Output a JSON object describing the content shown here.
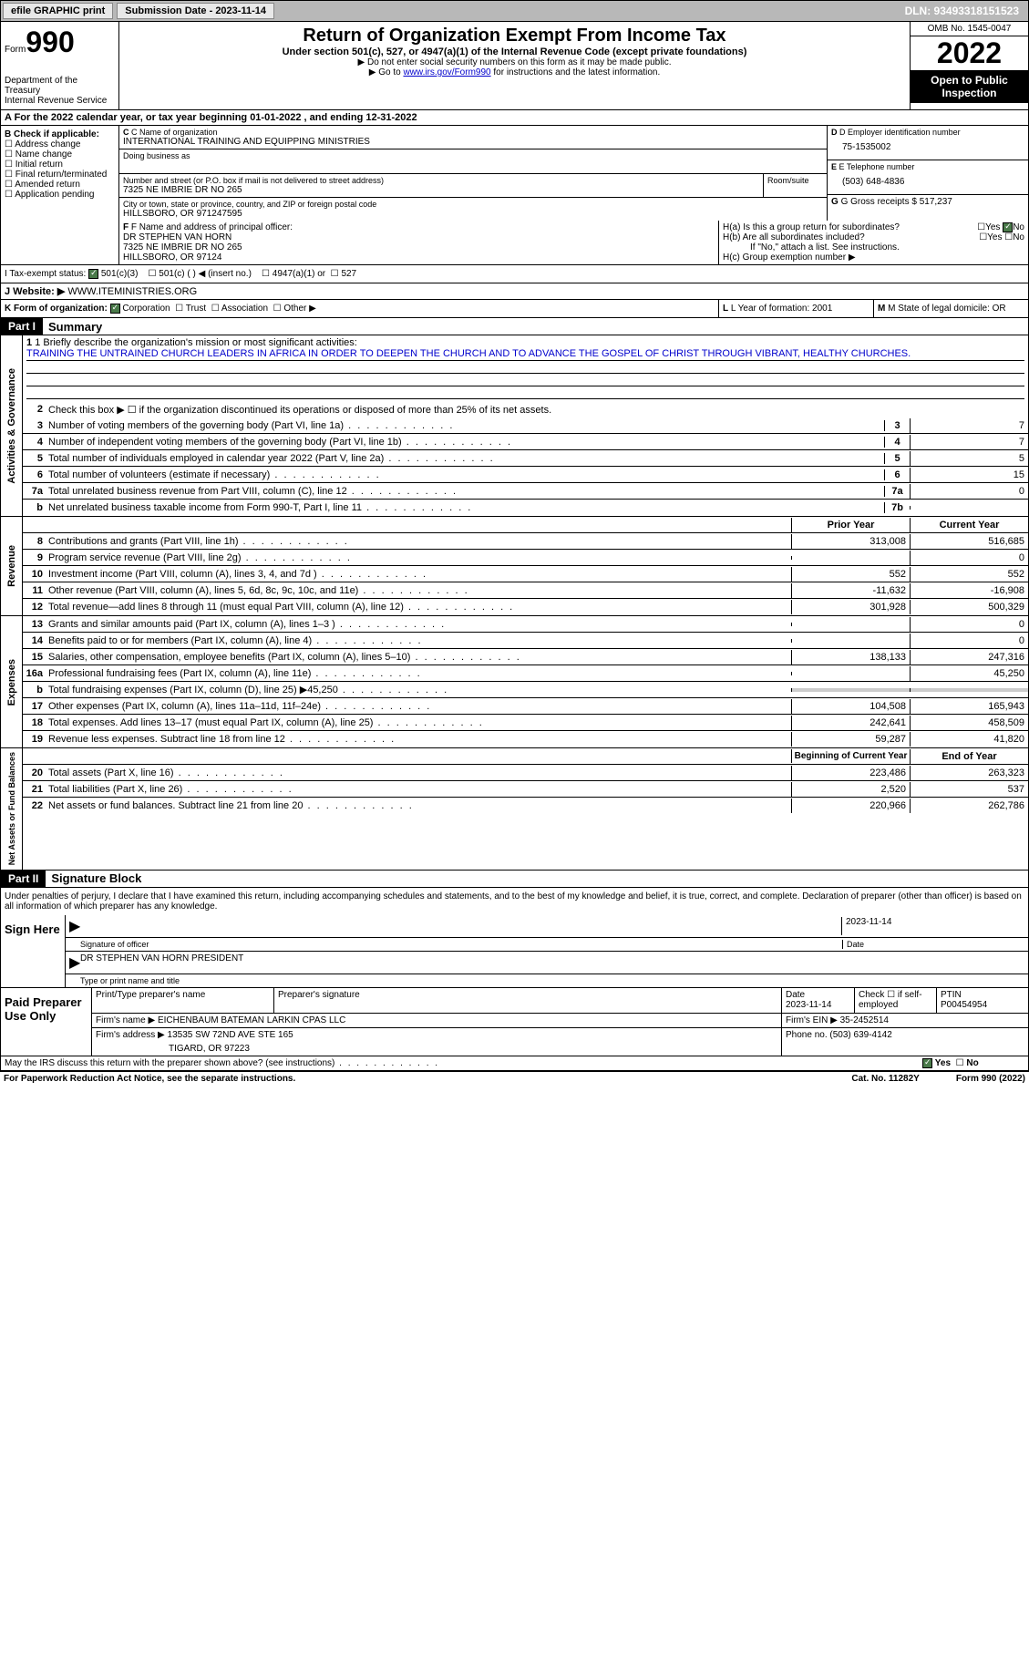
{
  "topbar": {
    "efile": "efile GRAPHIC print",
    "subdate_label": "Submission Date - 2023-11-14",
    "dln": "DLN: 93493318151523"
  },
  "header": {
    "form_label": "Form",
    "form_num": "990",
    "dept": "Department of the Treasury\nInternal Revenue Service",
    "title": "Return of Organization Exempt From Income Tax",
    "subtitle": "Under section 501(c), 527, or 4947(a)(1) of the Internal Revenue Code (except private foundations)",
    "note1": "▶ Do not enter social security numbers on this form as it may be made public.",
    "note2_pre": "▶ Go to ",
    "note2_link": "www.irs.gov/Form990",
    "note2_post": " for instructions and the latest information.",
    "omb": "OMB No. 1545-0047",
    "year": "2022",
    "open": "Open to Public Inspection"
  },
  "row_a": "A For the 2022 calendar year, or tax year beginning 01-01-2022    , and ending 12-31-2022",
  "section_b": {
    "label": "B Check if applicable:",
    "items": [
      "Address change",
      "Name change",
      "Initial return",
      "Final return/terminated",
      "Amended return",
      "Application pending"
    ]
  },
  "section_c": {
    "name_label": "C Name of organization",
    "name": "INTERNATIONAL TRAINING AND EQUIPPING MINISTRIES",
    "dba_label": "Doing business as",
    "dba": "",
    "addr_label": "Number and street (or P.O. box if mail is not delivered to street address)",
    "room_label": "Room/suite",
    "addr": "7325 NE IMBRIE DR NO 265",
    "city_label": "City or town, state or province, country, and ZIP or foreign postal code",
    "city": "HILLSBORO, OR  971247595"
  },
  "section_d": {
    "label": "D Employer identification number",
    "val": "75-1535002"
  },
  "section_e": {
    "label": "E Telephone number",
    "val": "(503) 648-4836"
  },
  "section_g": {
    "label": "G Gross receipts $ ",
    "val": "517,237"
  },
  "section_f": {
    "label": "F  Name and address of principal officer:",
    "name": "DR STEPHEN VAN HORN",
    "addr1": "7325 NE IMBRIE DR NO 265",
    "addr2": "HILLSBORO, OR  97124"
  },
  "section_h": {
    "a": "H(a)  Is this a group return for subordinates?",
    "b": "H(b)  Are all subordinates included?",
    "b_note": "If \"No,\" attach a list. See instructions.",
    "c": "H(c)  Group exemption number ▶"
  },
  "section_i": {
    "label": "I   Tax-exempt status:",
    "opt1": "501(c)(3)",
    "opt2": "501(c) (  ) ◀ (insert no.)",
    "opt3": "4947(a)(1) or",
    "opt4": "527"
  },
  "section_j": {
    "label": "J   Website: ▶",
    "val": "WWW.ITEMINISTRIES.ORG"
  },
  "section_k": {
    "label": "K Form of organization:",
    "opts": [
      "Corporation",
      "Trust",
      "Association",
      "Other ▶"
    ]
  },
  "section_l": {
    "label": "L Year of formation: ",
    "val": "2001"
  },
  "section_m": {
    "label": "M State of legal domicile: ",
    "val": "OR"
  },
  "part1": {
    "hdr": "Part I",
    "title": "Summary",
    "line1_label": "1  Briefly describe the organization's mission or most significant activities:",
    "mission": "TRAINING THE UNTRAINED CHURCH LEADERS IN AFRICA IN ORDER TO DEEPEN THE CHURCH AND TO ADVANCE THE GOSPEL OF CHRIST THROUGH VIBRANT, HEALTHY CHURCHES.",
    "line2": "Check this box ▶ ☐ if the organization discontinued its operations or disposed of more than 25% of its net assets.",
    "lines_ag": [
      {
        "n": "3",
        "d": "Number of voting members of the governing body (Part VI, line 1a)",
        "r": "3",
        "v": "7"
      },
      {
        "n": "4",
        "d": "Number of independent voting members of the governing body (Part VI, line 1b)",
        "r": "4",
        "v": "7"
      },
      {
        "n": "5",
        "d": "Total number of individuals employed in calendar year 2022 (Part V, line 2a)",
        "r": "5",
        "v": "5"
      },
      {
        "n": "6",
        "d": "Total number of volunteers (estimate if necessary)",
        "r": "6",
        "v": "15"
      },
      {
        "n": "7a",
        "d": "Total unrelated business revenue from Part VIII, column (C), line 12",
        "r": "7a",
        "v": "0"
      },
      {
        "n": "b",
        "d": "Net unrelated business taxable income from Form 990-T, Part I, line 11",
        "r": "7b",
        "v": ""
      }
    ],
    "hdr_prior": "Prior Year",
    "hdr_current": "Current Year",
    "revenue": [
      {
        "n": "8",
        "d": "Contributions and grants (Part VIII, line 1h)",
        "p": "313,008",
        "c": "516,685"
      },
      {
        "n": "9",
        "d": "Program service revenue (Part VIII, line 2g)",
        "p": "",
        "c": "0"
      },
      {
        "n": "10",
        "d": "Investment income (Part VIII, column (A), lines 3, 4, and 7d )",
        "p": "552",
        "c": "552"
      },
      {
        "n": "11",
        "d": "Other revenue (Part VIII, column (A), lines 5, 6d, 8c, 9c, 10c, and 11e)",
        "p": "-11,632",
        "c": "-16,908"
      },
      {
        "n": "12",
        "d": "Total revenue—add lines 8 through 11 (must equal Part VIII, column (A), line 12)",
        "p": "301,928",
        "c": "500,329"
      }
    ],
    "expenses": [
      {
        "n": "13",
        "d": "Grants and similar amounts paid (Part IX, column (A), lines 1–3 )",
        "p": "",
        "c": "0"
      },
      {
        "n": "14",
        "d": "Benefits paid to or for members (Part IX, column (A), line 4)",
        "p": "",
        "c": "0"
      },
      {
        "n": "15",
        "d": "Salaries, other compensation, employee benefits (Part IX, column (A), lines 5–10)",
        "p": "138,133",
        "c": "247,316"
      },
      {
        "n": "16a",
        "d": "Professional fundraising fees (Part IX, column (A), line 11e)",
        "p": "",
        "c": "45,250"
      },
      {
        "n": "b",
        "d": "Total fundraising expenses (Part IX, column (D), line 25) ▶45,250",
        "p": "shade",
        "c": "shade"
      },
      {
        "n": "17",
        "d": "Other expenses (Part IX, column (A), lines 11a–11d, 11f–24e)",
        "p": "104,508",
        "c": "165,943"
      },
      {
        "n": "18",
        "d": "Total expenses. Add lines 13–17 (must equal Part IX, column (A), line 25)",
        "p": "242,641",
        "c": "458,509"
      },
      {
        "n": "19",
        "d": "Revenue less expenses. Subtract line 18 from line 12",
        "p": "59,287",
        "c": "41,820"
      }
    ],
    "hdr_begin": "Beginning of Current Year",
    "hdr_end": "End of Year",
    "netassets": [
      {
        "n": "20",
        "d": "Total assets (Part X, line 16)",
        "p": "223,486",
        "c": "263,323"
      },
      {
        "n": "21",
        "d": "Total liabilities (Part X, line 26)",
        "p": "2,520",
        "c": "537"
      },
      {
        "n": "22",
        "d": "Net assets or fund balances. Subtract line 21 from line 20",
        "p": "220,966",
        "c": "262,786"
      }
    ],
    "side_ag": "Activities & Governance",
    "side_rev": "Revenue",
    "side_exp": "Expenses",
    "side_na": "Net Assets or Fund Balances"
  },
  "part2": {
    "hdr": "Part II",
    "title": "Signature Block",
    "decl": "Under penalties of perjury, I declare that I have examined this return, including accompanying schedules and statements, and to the best of my knowledge and belief, it is true, correct, and complete. Declaration of preparer (other than officer) is based on all information of which preparer has any knowledge.",
    "sign_here": "Sign Here",
    "sig_officer": "Signature of officer",
    "sig_date": "2023-11-14",
    "date_label": "Date",
    "officer_name": "DR STEPHEN VAN HORN  PRESIDENT",
    "name_label": "Type or print name and title",
    "paid": "Paid Preparer Use Only",
    "prep_name_label": "Print/Type preparer's name",
    "prep_sig_label": "Preparer's signature",
    "prep_date_label": "Date",
    "prep_date": "2023-11-14",
    "check_self": "Check ☐ if self-employed",
    "ptin_label": "PTIN",
    "ptin": "P00454954",
    "firm_name_label": "Firm's name     ▶",
    "firm_name": "EICHENBAUM BATEMAN LARKIN CPAS LLC",
    "firm_ein_label": "Firm's EIN ▶",
    "firm_ein": "35-2452514",
    "firm_addr_label": "Firm's address ▶",
    "firm_addr1": "13535 SW 72ND AVE STE 165",
    "firm_addr2": "TIGARD, OR  97223",
    "phone_label": "Phone no.",
    "phone": "(503) 639-4142",
    "discuss": "May the IRS discuss this return with the preparer shown above? (see instructions)",
    "yes": "Yes",
    "no": "No"
  },
  "footer": {
    "pra": "For Paperwork Reduction Act Notice, see the separate instructions.",
    "cat": "Cat. No. 11282Y",
    "form": "Form 990 (2022)"
  }
}
